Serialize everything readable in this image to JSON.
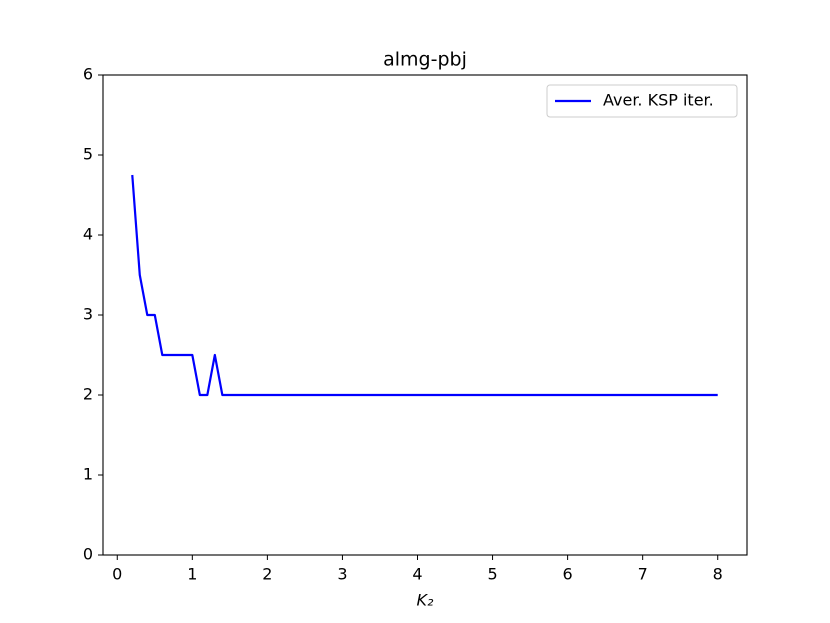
{
  "chart_data": {
    "type": "line",
    "title": "almg-pbj",
    "x_label": "K₂",
    "x": [
      0.2,
      0.3,
      0.4,
      0.5,
      0.6,
      0.7,
      0.8,
      0.9,
      1.0,
      1.1,
      1.2,
      1.3,
      1.4,
      8.0
    ],
    "series": [
      {
        "name": "Aver. KSP iter.",
        "color": "#0000ff",
        "values": [
          4.75,
          3.5,
          3,
          3,
          2.5,
          2.5,
          2.5,
          2.5,
          2.5,
          2,
          2,
          2.5,
          2,
          2
        ]
      }
    ],
    "xlim": [
      -0.19,
      8.39
    ],
    "ylim": [
      0,
      6
    ],
    "xticks": [
      0,
      1,
      2,
      3,
      4,
      5,
      6,
      7,
      8
    ],
    "yticks": [
      0,
      1,
      2,
      3,
      4,
      5,
      6
    ],
    "legend": "upper right",
    "grid": false
  }
}
